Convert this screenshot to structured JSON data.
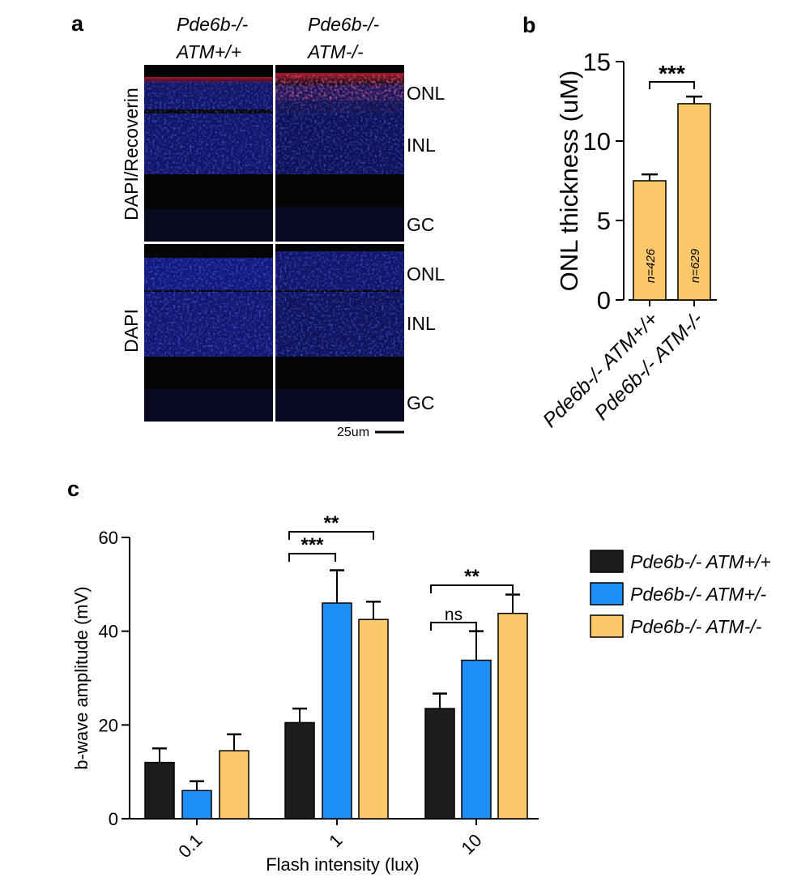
{
  "panel_a": {
    "letter": "a",
    "column_headers": [
      {
        "line1": "Pde6b-/-",
        "line2": "ATM+/+"
      },
      {
        "line1": "Pde6b-/-",
        "line2": "ATM-/-"
      }
    ],
    "row_labels": [
      "DAPI/Recoverin",
      "DAPI"
    ],
    "layer_labels_top": [
      "ONL",
      "INL",
      "GC"
    ],
    "layer_labels_bottom": [
      "ONL",
      "INL",
      "GC"
    ],
    "scale_bar_label": "25um",
    "colors": {
      "dapi": "#1b26c8",
      "recoverin": "#d8203c",
      "background": "#050505"
    }
  },
  "chart_data": [
    {
      "panel": "b",
      "type": "bar",
      "ylabel": "ONL thickness (uM)",
      "ylim": [
        0,
        15
      ],
      "yticks": [
        0,
        5,
        10,
        15
      ],
      "categories": [
        "Pde6b-/- ATM+/+",
        "Pde6b-/- ATM-/-"
      ],
      "values": [
        7.5,
        12.35
      ],
      "errors": [
        0.4,
        0.45
      ],
      "bar_annotations": [
        "n=426",
        "n=629"
      ],
      "bar_color": "#fcc96a",
      "significance": [
        {
          "from": 0,
          "to": 1,
          "label": "***"
        }
      ]
    },
    {
      "panel": "c",
      "type": "bar",
      "xlabel": "Flash intensity (lux)",
      "ylabel": "b-wave amplitude (mV)",
      "ylim": [
        0,
        60
      ],
      "yticks": [
        0,
        20,
        40,
        60
      ],
      "categories": [
        "0.1",
        "1",
        "10"
      ],
      "series": [
        {
          "name": "Pde6b-/- ATM+/+",
          "color": "#1c1c1c",
          "values": [
            12,
            20.5,
            23.5
          ],
          "errors": [
            3,
            3,
            3.2
          ]
        },
        {
          "name": "Pde6b-/- ATM+/-",
          "color": "#1e8ff5",
          "values": [
            6,
            46,
            33.8
          ],
          "errors": [
            2,
            7,
            6.2
          ]
        },
        {
          "name": "Pde6b-/- ATM-/-",
          "color": "#fcc96a",
          "values": [
            14.5,
            42.5,
            43.8
          ],
          "errors": [
            3.5,
            3.8,
            4
          ]
        }
      ],
      "significance": [
        {
          "category": 1,
          "from_series": 0,
          "to_series": 2,
          "label": "**"
        },
        {
          "category": 1,
          "from_series": 0,
          "to_series": 1,
          "label": "***"
        },
        {
          "category": 2,
          "from_series": 0,
          "to_series": 2,
          "label": "**"
        },
        {
          "category": 2,
          "from_series": 0,
          "to_series": 1,
          "label": "ns"
        }
      ],
      "legend_position": "right"
    }
  ]
}
